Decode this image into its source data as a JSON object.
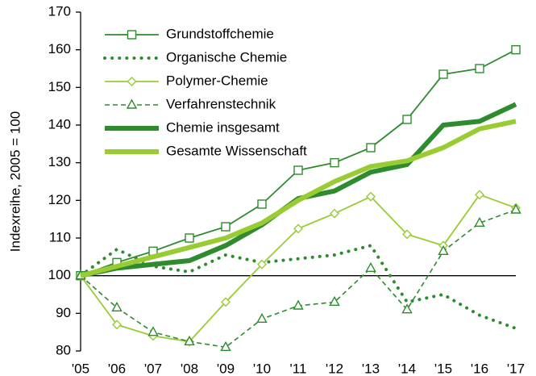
{
  "chart_data": {
    "type": "line",
    "y_label": "Indexreihe, 2005 = 100",
    "categories": [
      "'05",
      "'06",
      "'07",
      "'08",
      "'09",
      "'10",
      "'11",
      "'12",
      "'13",
      "'14",
      "'15",
      "'16",
      "'17"
    ],
    "ylim": [
      80,
      170
    ],
    "yticks": [
      80,
      90,
      100,
      110,
      120,
      130,
      140,
      150,
      160,
      170
    ],
    "reference_line": 100,
    "legend": "top-left",
    "series": [
      {
        "name": "Grundstoffchemie",
        "color": "#2e8b2e",
        "style": "solid",
        "marker": "square",
        "values": [
          100,
          103.5,
          106.5,
          110,
          113,
          119,
          128,
          130,
          134,
          141.5,
          153.5,
          155,
          160
        ]
      },
      {
        "name": "Organische Chemie",
        "color": "#2e8b2e",
        "style": "dotted",
        "marker": "none",
        "values": [
          100,
          107,
          102.5,
          101,
          105.5,
          103.5,
          104.5,
          105.5,
          108,
          93,
          95,
          89.5,
          86
        ]
      },
      {
        "name": "Polymer-Chemie",
        "color": "#99cc33",
        "style": "solid",
        "marker": "diamond",
        "values": [
          100,
          87,
          84,
          82.5,
          93,
          103,
          112.5,
          116.5,
          121,
          111,
          108,
          121.5,
          118
        ]
      },
      {
        "name": "Verfahrenstechnik",
        "color": "#2e8b2e",
        "style": "dashed",
        "marker": "triangle",
        "values": [
          100,
          91.5,
          85,
          82.5,
          81,
          88.5,
          92,
          93,
          102,
          91,
          106.5,
          114,
          117.5
        ]
      },
      {
        "name": "Chemie insgesamt",
        "color": "#2e8b2e",
        "style": "thick",
        "marker": "none",
        "values": [
          100,
          102,
          103,
          104,
          108,
          113.5,
          120.5,
          122.5,
          127.5,
          129.5,
          140,
          141,
          145.5
        ]
      },
      {
        "name": "Gesamte Wissenschaft",
        "color": "#99cc33",
        "style": "thick",
        "marker": "none",
        "values": [
          100,
          102.5,
          105,
          107.5,
          110,
          114,
          120,
          125,
          129,
          130.5,
          134,
          139,
          141
        ]
      }
    ]
  }
}
